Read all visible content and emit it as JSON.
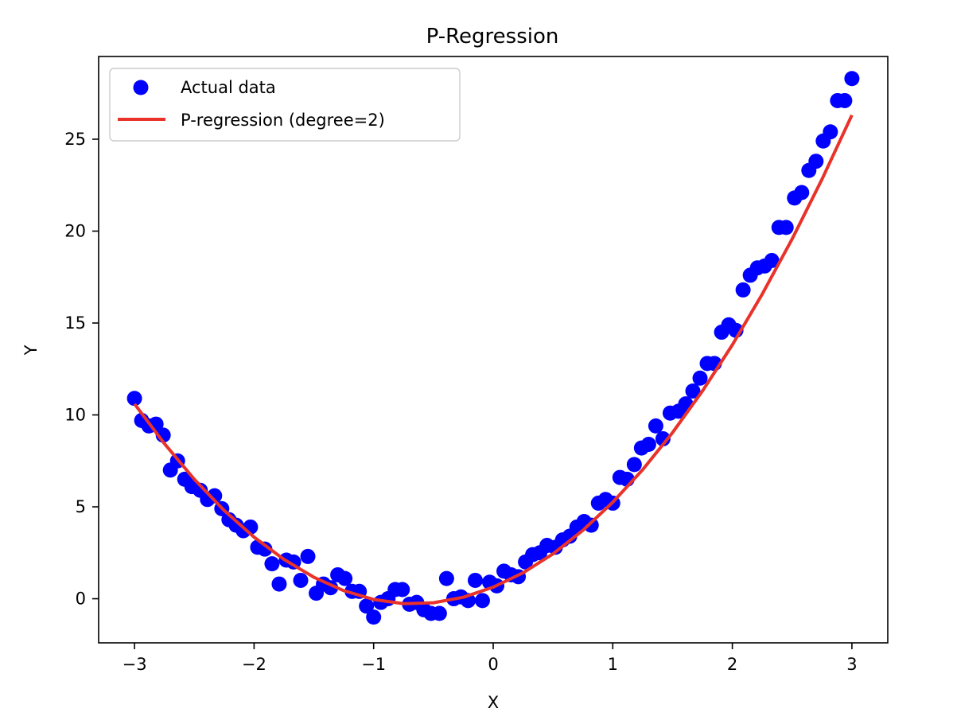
{
  "colors": {
    "points": "#0000ff",
    "line": "#e8322a",
    "axes": "#000000",
    "background": "#ffffff",
    "legend_border": "#cccccc"
  },
  "chart_data": {
    "type": "scatter",
    "title": "P-Regression",
    "xlabel": "X",
    "ylabel": "Y",
    "xlim": [
      -3.3,
      3.3
    ],
    "ylim": [
      -2.4,
      29.5
    ],
    "x_ticks": [
      -3,
      -2,
      -1,
      0,
      1,
      2,
      3
    ],
    "x_tick_labels": [
      "−3",
      "−2",
      "−1",
      "0",
      "1",
      "2",
      "3"
    ],
    "y_ticks": [
      0,
      5,
      10,
      15,
      20,
      25
    ],
    "y_tick_labels": [
      "0",
      "5",
      "10",
      "15",
      "20",
      "25"
    ],
    "grid": false,
    "legend_position": "top-left",
    "series": [
      {
        "name": "Actual data",
        "kind": "scatter",
        "color": "#0000ff",
        "x": [
          -3.0,
          -2.94,
          -2.88,
          -2.82,
          -2.76,
          -2.7,
          -2.64,
          -2.58,
          -2.52,
          -2.45,
          -2.39,
          -2.33,
          -2.27,
          -2.21,
          -2.15,
          -2.09,
          -2.03,
          -1.97,
          -1.91,
          -1.85,
          -1.79,
          -1.73,
          -1.67,
          -1.61,
          -1.55,
          -1.48,
          -1.42,
          -1.36,
          -1.3,
          -1.24,
          -1.18,
          -1.12,
          -1.06,
          -1.0,
          -0.94,
          -0.88,
          -0.82,
          -0.76,
          -0.7,
          -0.64,
          -0.58,
          -0.52,
          -0.45,
          -0.39,
          -0.33,
          -0.27,
          -0.21,
          -0.15,
          -0.09,
          -0.03,
          0.03,
          0.09,
          0.15,
          0.21,
          0.27,
          0.33,
          0.39,
          0.45,
          0.52,
          0.58,
          0.64,
          0.7,
          0.76,
          0.82,
          0.88,
          0.94,
          1.0,
          1.06,
          1.12,
          1.18,
          1.24,
          1.3,
          1.36,
          1.42,
          1.48,
          1.55,
          1.61,
          1.67,
          1.73,
          1.79,
          1.85,
          1.91,
          1.97,
          2.03,
          2.09,
          2.15,
          2.21,
          2.27,
          2.33,
          2.39,
          2.45,
          2.52,
          2.58,
          2.64,
          2.7,
          2.76,
          2.82,
          2.88,
          2.94,
          3.0
        ],
        "y": [
          10.9,
          9.7,
          9.4,
          9.5,
          8.9,
          7.0,
          7.5,
          6.5,
          6.1,
          5.9,
          5.4,
          5.6,
          4.9,
          4.3,
          4.0,
          3.7,
          3.9,
          2.8,
          2.7,
          1.9,
          0.8,
          2.1,
          2.0,
          1.0,
          2.3,
          0.3,
          0.8,
          0.6,
          1.3,
          1.1,
          0.4,
          0.4,
          -0.4,
          -1.0,
          -0.2,
          0.0,
          0.5,
          0.5,
          -0.3,
          -0.2,
          -0.6,
          -0.8,
          -0.8,
          1.1,
          0.0,
          0.1,
          -0.1,
          1.0,
          -0.1,
          0.9,
          0.7,
          1.5,
          1.3,
          1.2,
          2.0,
          2.4,
          2.5,
          2.9,
          2.8,
          3.2,
          3.4,
          3.9,
          4.2,
          4.0,
          5.2,
          5.4,
          5.2,
          6.6,
          6.5,
          7.3,
          8.2,
          8.4,
          9.4,
          8.7,
          10.1,
          10.2,
          10.6,
          11.3,
          12.0,
          12.8,
          12.8,
          14.5,
          14.9,
          14.6,
          16.8,
          17.6,
          18.0,
          18.1,
          18.4,
          20.2,
          20.2,
          21.8,
          22.1,
          23.3,
          23.8,
          24.9,
          25.4,
          27.1,
          27.1,
          28.3
        ]
      },
      {
        "name": "P-regression (degree=2)",
        "kind": "line",
        "color": "#e8322a",
        "x": [
          -3.0,
          -2.75,
          -2.5,
          -2.25,
          -2.0,
          -1.75,
          -1.5,
          -1.25,
          -1.0,
          -0.75,
          -0.5,
          -0.25,
          0.0,
          0.25,
          0.5,
          0.75,
          1.0,
          1.25,
          1.5,
          1.75,
          2.0,
          2.25,
          2.5,
          2.75,
          3.0
        ],
        "y": [
          10.6,
          8.44,
          6.5,
          4.8,
          3.35,
          2.14,
          1.17,
          0.44,
          -0.04,
          -0.27,
          -0.22,
          0.08,
          0.63,
          1.41,
          2.44,
          3.72,
          5.25,
          7.02,
          9.04,
          11.3,
          13.81,
          16.57,
          19.57,
          22.82,
          26.31
        ]
      }
    ]
  }
}
